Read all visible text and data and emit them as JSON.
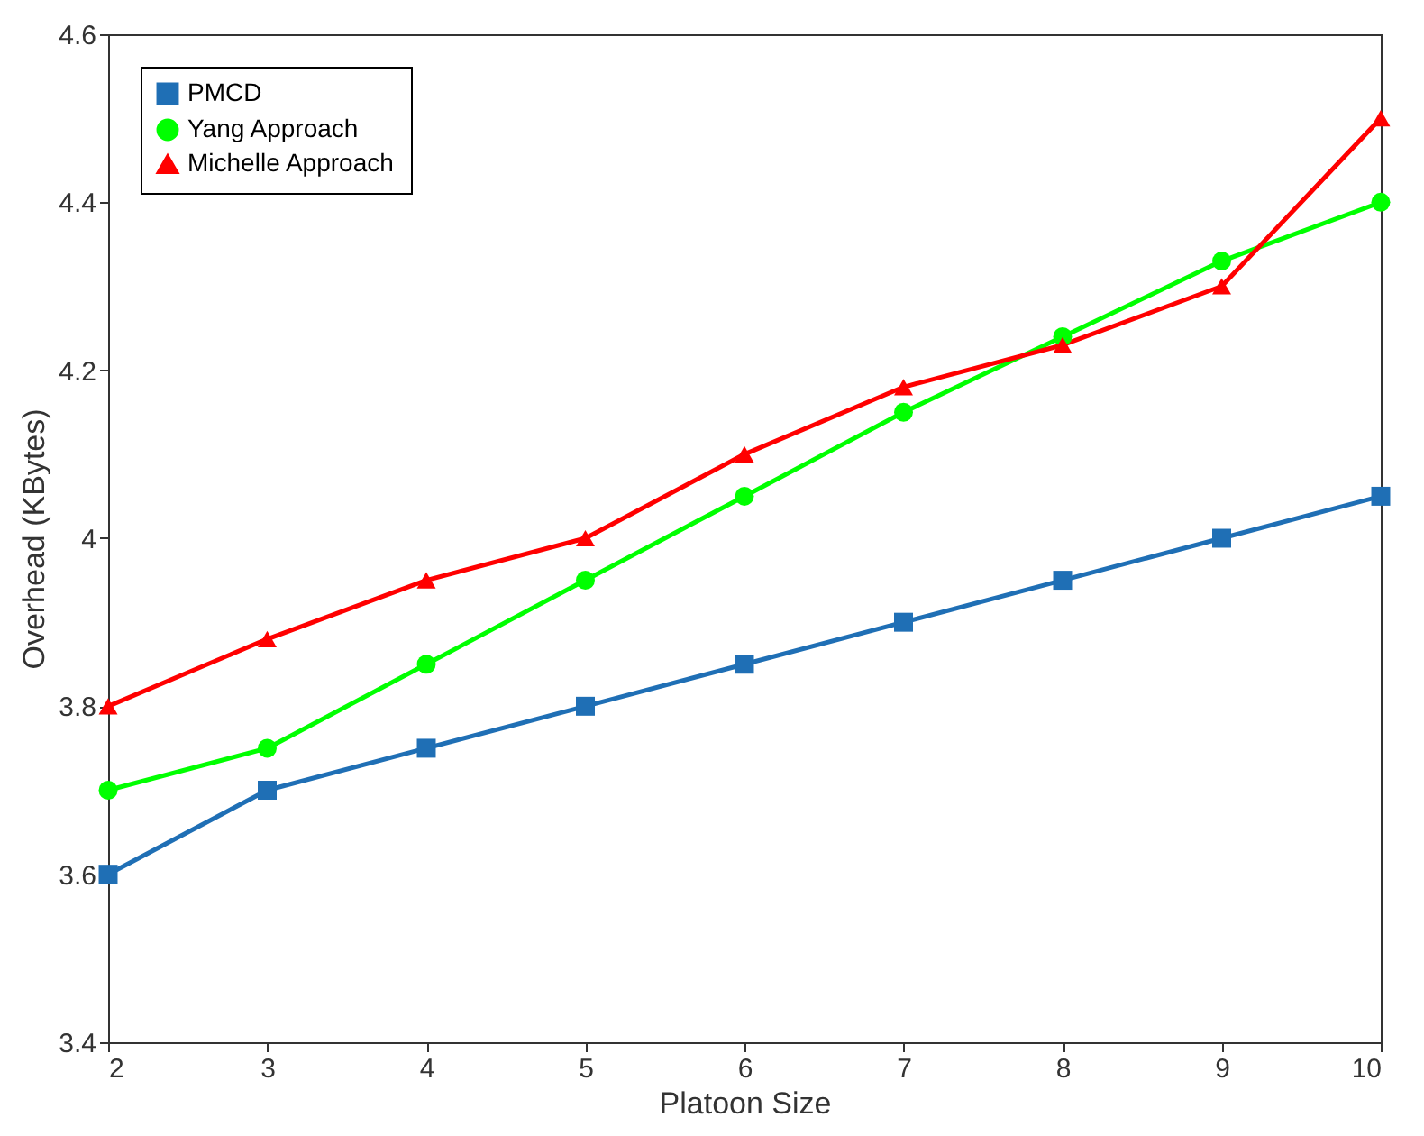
{
  "chart_data": {
    "type": "line",
    "xlabel": "Platoon Size",
    "ylabel": "Overhead (KBytes)",
    "x": [
      2,
      3,
      4,
      5,
      6,
      7,
      8,
      9,
      10
    ],
    "xlim": [
      2,
      10
    ],
    "xticks": [
      2,
      3,
      4,
      5,
      6,
      7,
      8,
      9,
      10
    ],
    "ylim": [
      3.4,
      4.6
    ],
    "yticks": [
      3.4,
      3.6,
      3.8,
      4,
      4.2,
      4.4,
      4.6
    ],
    "grid": false,
    "legend": "top left",
    "line_style": "solid",
    "series": [
      {
        "name": "PMCD",
        "color": "#1f6fb5",
        "marker": "square",
        "values": [
          3.6,
          3.7,
          3.75,
          3.8,
          3.85,
          3.9,
          3.95,
          4.0,
          4.05
        ]
      },
      {
        "name": "Yang Approach",
        "color": "#00ff00",
        "marker": "circle",
        "values": [
          3.7,
          3.75,
          3.85,
          3.95,
          4.05,
          4.15,
          4.24,
          4.33,
          4.4
        ]
      },
      {
        "name": "Michelle Approach",
        "color": "#ff0000",
        "marker": "triangle",
        "values": [
          3.8,
          3.88,
          3.95,
          4.0,
          4.1,
          4.18,
          4.23,
          4.3,
          4.5
        ]
      }
    ]
  }
}
